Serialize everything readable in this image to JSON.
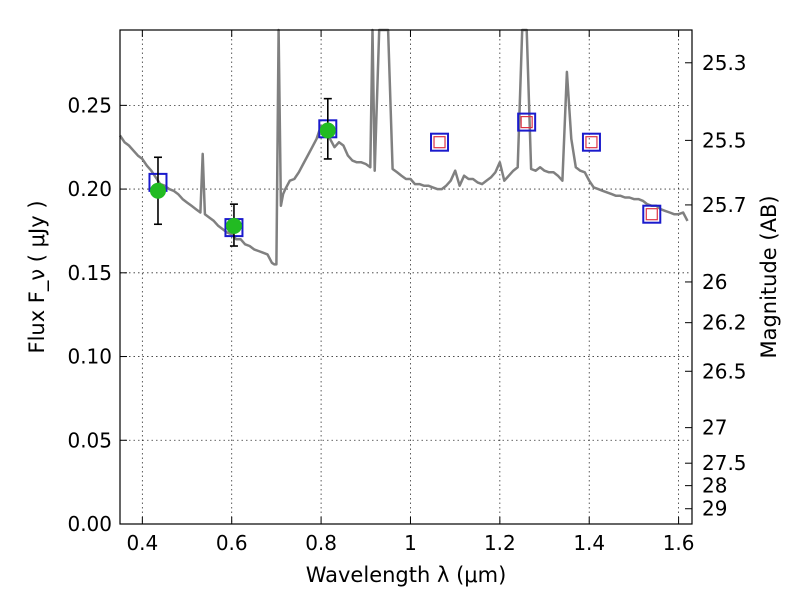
{
  "chart_data": {
    "type": "scatter",
    "xlabel": "Wavelength  λ (μm)",
    "ylabel": "Flux  F_ν  ( μJy )",
    "ylabel_right": "Magnitude (AB)",
    "xlim": [
      0.35,
      1.63
    ],
    "ylim": [
      0.0,
      0.295
    ],
    "x_ticks": [
      "0.4",
      "0.6",
      "0.8",
      "1",
      "1.2",
      "1.4",
      "1.6"
    ],
    "y_ticks": [
      "0.00",
      "0.05",
      "0.10",
      "0.15",
      "0.20",
      "0.25"
    ],
    "mag_ticks": [
      "25.3",
      "25.5",
      "25.7",
      "26",
      "26.2",
      "26.5",
      "27",
      "27.5",
      "28",
      "29"
    ],
    "grid": true,
    "colors": {
      "spectrum": "#808080",
      "observed": "#22bb22",
      "model_square": "#1a1acc",
      "inner_square": "#dd3344",
      "errorbar": "#000000"
    },
    "series": [
      {
        "kind": "spectrum",
        "x": [
          0.35,
          0.36,
          0.37,
          0.38,
          0.39,
          0.4,
          0.41,
          0.42,
          0.43,
          0.44,
          0.45,
          0.46,
          0.47,
          0.48,
          0.49,
          0.5,
          0.51,
          0.52,
          0.53,
          0.535,
          0.54,
          0.55,
          0.56,
          0.57,
          0.58,
          0.59,
          0.6,
          0.61,
          0.62,
          0.63,
          0.64,
          0.65,
          0.66,
          0.67,
          0.68,
          0.69,
          0.695,
          0.7,
          0.705,
          0.71,
          0.715,
          0.72,
          0.73,
          0.74,
          0.75,
          0.76,
          0.77,
          0.78,
          0.79,
          0.8,
          0.81,
          0.82,
          0.83,
          0.84,
          0.85,
          0.86,
          0.87,
          0.88,
          0.89,
          0.9,
          0.91,
          0.915,
          0.92,
          0.93,
          0.94,
          0.95,
          0.96,
          0.97,
          0.98,
          0.99,
          1.0,
          1.01,
          1.02,
          1.03,
          1.04,
          1.05,
          1.06,
          1.07,
          1.08,
          1.09,
          1.1,
          1.11,
          1.12,
          1.13,
          1.14,
          1.15,
          1.16,
          1.17,
          1.18,
          1.19,
          1.2,
          1.21,
          1.22,
          1.23,
          1.24,
          1.25,
          1.26,
          1.27,
          1.28,
          1.29,
          1.3,
          1.31,
          1.32,
          1.33,
          1.34,
          1.35,
          1.36,
          1.37,
          1.38,
          1.39,
          1.4,
          1.41,
          1.42,
          1.43,
          1.44,
          1.45,
          1.46,
          1.47,
          1.48,
          1.49,
          1.5,
          1.51,
          1.52,
          1.53,
          1.54,
          1.55,
          1.56,
          1.57,
          1.58,
          1.59,
          1.6,
          1.61,
          1.62
        ],
        "y": [
          0.232,
          0.228,
          0.226,
          0.223,
          0.22,
          0.218,
          0.214,
          0.211,
          0.207,
          0.203,
          0.202,
          0.2,
          0.199,
          0.197,
          0.194,
          0.192,
          0.19,
          0.188,
          0.186,
          0.221,
          0.185,
          0.183,
          0.181,
          0.178,
          0.176,
          0.174,
          0.173,
          0.17,
          0.17,
          0.167,
          0.166,
          0.164,
          0.163,
          0.162,
          0.161,
          0.156,
          0.155,
          0.155,
          0.3,
          0.19,
          0.197,
          0.2,
          0.205,
          0.206,
          0.21,
          0.215,
          0.22,
          0.225,
          0.23,
          0.238,
          0.232,
          0.23,
          0.225,
          0.228,
          0.226,
          0.22,
          0.217,
          0.216,
          0.216,
          0.215,
          0.213,
          0.3,
          0.211,
          0.3,
          0.3,
          0.3,
          0.212,
          0.21,
          0.208,
          0.206,
          0.206,
          0.203,
          0.203,
          0.202,
          0.202,
          0.201,
          0.2,
          0.2,
          0.202,
          0.205,
          0.211,
          0.202,
          0.208,
          0.206,
          0.206,
          0.204,
          0.203,
          0.205,
          0.207,
          0.21,
          0.216,
          0.205,
          0.208,
          0.211,
          0.213,
          0.3,
          0.3,
          0.212,
          0.211,
          0.213,
          0.211,
          0.21,
          0.21,
          0.208,
          0.205,
          0.27,
          0.23,
          0.213,
          0.211,
          0.21,
          0.205,
          0.201,
          0.2,
          0.199,
          0.198,
          0.197,
          0.196,
          0.196,
          0.195,
          0.195,
          0.194,
          0.194,
          0.193,
          0.191,
          0.19,
          0.19,
          0.188,
          0.187,
          0.186,
          0.185,
          0.185,
          0.186,
          0.181
        ]
      },
      {
        "kind": "observed",
        "x": [
          0.435,
          0.605,
          0.815
        ],
        "y": [
          0.199,
          0.178,
          0.235
        ],
        "yerr_low": [
          0.02,
          0.012,
          0.017
        ],
        "yerr_high": [
          0.02,
          0.013,
          0.019
        ]
      },
      {
        "kind": "model_squares",
        "x": [
          0.435,
          0.605,
          0.815,
          1.065,
          1.26,
          1.405,
          1.54
        ],
        "y": [
          0.204,
          0.177,
          0.236,
          0.228,
          0.24,
          0.228,
          0.185
        ]
      },
      {
        "kind": "inner_squares",
        "x": [
          1.065,
          1.26,
          1.405,
          1.54
        ],
        "y": [
          0.228,
          0.24,
          0.228,
          0.185
        ]
      }
    ]
  }
}
